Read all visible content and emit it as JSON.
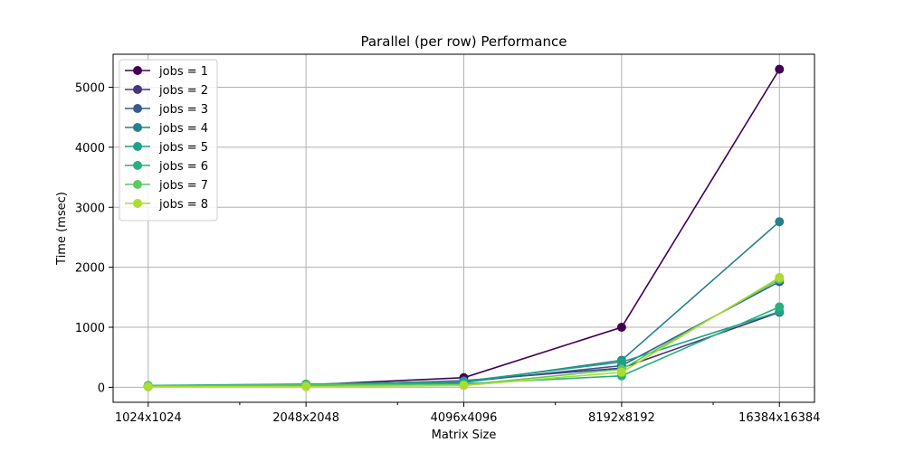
{
  "chart_data": {
    "type": "line",
    "title": "Parallel (per row) Performance",
    "xlabel": "Matrix Size",
    "ylabel": "Time (msec)",
    "categories": [
      "1024x1024",
      "2048x2048",
      "4096x4096",
      "8192x8192",
      "16384x16384"
    ],
    "x_scale": "log2",
    "ylim": [
      -250,
      5550
    ],
    "yticks": [
      0,
      1000,
      2000,
      3000,
      4000,
      5000
    ],
    "grid": true,
    "legend_position": "upper-left",
    "series": [
      {
        "name": "jobs = 1",
        "color": "#440154",
        "values": [
          20,
          40,
          160,
          1000,
          5300
        ]
      },
      {
        "name": "jobs = 2",
        "color": "#46327e",
        "values": [
          15,
          30,
          110,
          320,
          1250
        ]
      },
      {
        "name": "jobs = 3",
        "color": "#365c8d",
        "values": [
          12,
          25,
          90,
          360,
          1760
        ]
      },
      {
        "name": "jobs = 4",
        "color": "#277f8e",
        "values": [
          10,
          20,
          80,
          450,
          2760
        ]
      },
      {
        "name": "jobs = 5",
        "color": "#1fa187",
        "values": [
          25,
          50,
          100,
          420,
          1260
        ]
      },
      {
        "name": "jobs = 6",
        "color": "#2ab07f",
        "values": [
          30,
          55,
          60,
          190,
          1340
        ]
      },
      {
        "name": "jobs = 7",
        "color": "#5ec962",
        "values": [
          22,
          35,
          40,
          300,
          1800
        ]
      },
      {
        "name": "jobs = 8",
        "color": "#addc30",
        "values": [
          8,
          10,
          30,
          250,
          1830
        ]
      }
    ]
  }
}
